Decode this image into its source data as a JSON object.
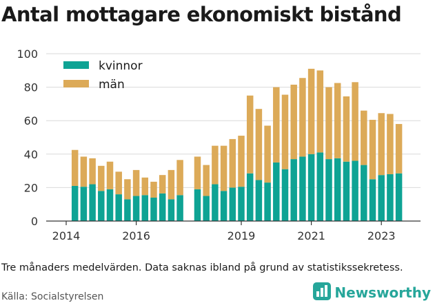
{
  "title": "Antal mottagare ekonomiskt bistånd",
  "caption": "Tre månaders medelvärden. Data saknas ibland på grund av statistikssekretess.",
  "source": "Källa: Socialstyrelsen",
  "brand": {
    "name": "Newsworthy",
    "icon": "bar-chart-logo-icon"
  },
  "colors": {
    "kvinnor": "#0ea394",
    "man": "#dcaa58",
    "grid": "#d9d9d9",
    "axis": "#333333"
  },
  "chart_data": {
    "type": "bar",
    "stacked": true,
    "x_ticks": [
      "2014",
      "2016",
      "2019",
      "2021",
      "2023"
    ],
    "y_ticks": [
      "0",
      "20",
      "40",
      "60",
      "80",
      "100"
    ],
    "ylim": [
      0,
      100
    ],
    "grid": true,
    "legend": "top-left",
    "categories": [
      "2014-Q2",
      "2014-Q3",
      "2014-Q4",
      "2015-Q1",
      "2015-Q2",
      "2015-Q3",
      "2015-Q4",
      "2016-Q1",
      "2016-Q2",
      "2016-Q3",
      "2016-Q4",
      "2017-Q1",
      "2017-Q2",
      "2017-Q3",
      "2017-Q4",
      "2018-Q1",
      "2018-Q2",
      "2018-Q3",
      "2018-Q4",
      "2019-Q1",
      "2019-Q2",
      "2019-Q3",
      "2019-Q4",
      "2020-Q1",
      "2020-Q2",
      "2020-Q3",
      "2020-Q4",
      "2021-Q1",
      "2021-Q2",
      "2021-Q3",
      "2021-Q4",
      "2022-Q1",
      "2022-Q2",
      "2022-Q3",
      "2022-Q4",
      "2023-Q1",
      "2023-Q2",
      "2023-Q3",
      "2023-Q4"
    ],
    "series": [
      {
        "name": "kvinnor",
        "values": [
          21,
          20.5,
          22,
          18,
          19,
          16,
          13,
          15,
          15.5,
          14,
          16.5,
          13,
          15.5,
          null,
          19,
          15,
          22,
          18,
          20,
          20.5,
          28.5,
          24.5,
          23,
          35,
          31,
          37,
          38.5,
          40,
          41,
          37,
          37.5,
          35.5,
          36,
          33.5,
          25,
          27.5,
          28,
          28.5,
          null
        ]
      },
      {
        "name": "män",
        "values": [
          21.5,
          18,
          15.5,
          15,
          16.5,
          13.5,
          12,
          15.5,
          10.5,
          9.5,
          11,
          17.5,
          21,
          null,
          19.5,
          18.5,
          23,
          27,
          29,
          30.5,
          46.5,
          42.5,
          34,
          45,
          44.5,
          44.5,
          47,
          51,
          49,
          43,
          45,
          39,
          47,
          32.5,
          35.5,
          37,
          36,
          29.5,
          null
        ]
      }
    ]
  }
}
